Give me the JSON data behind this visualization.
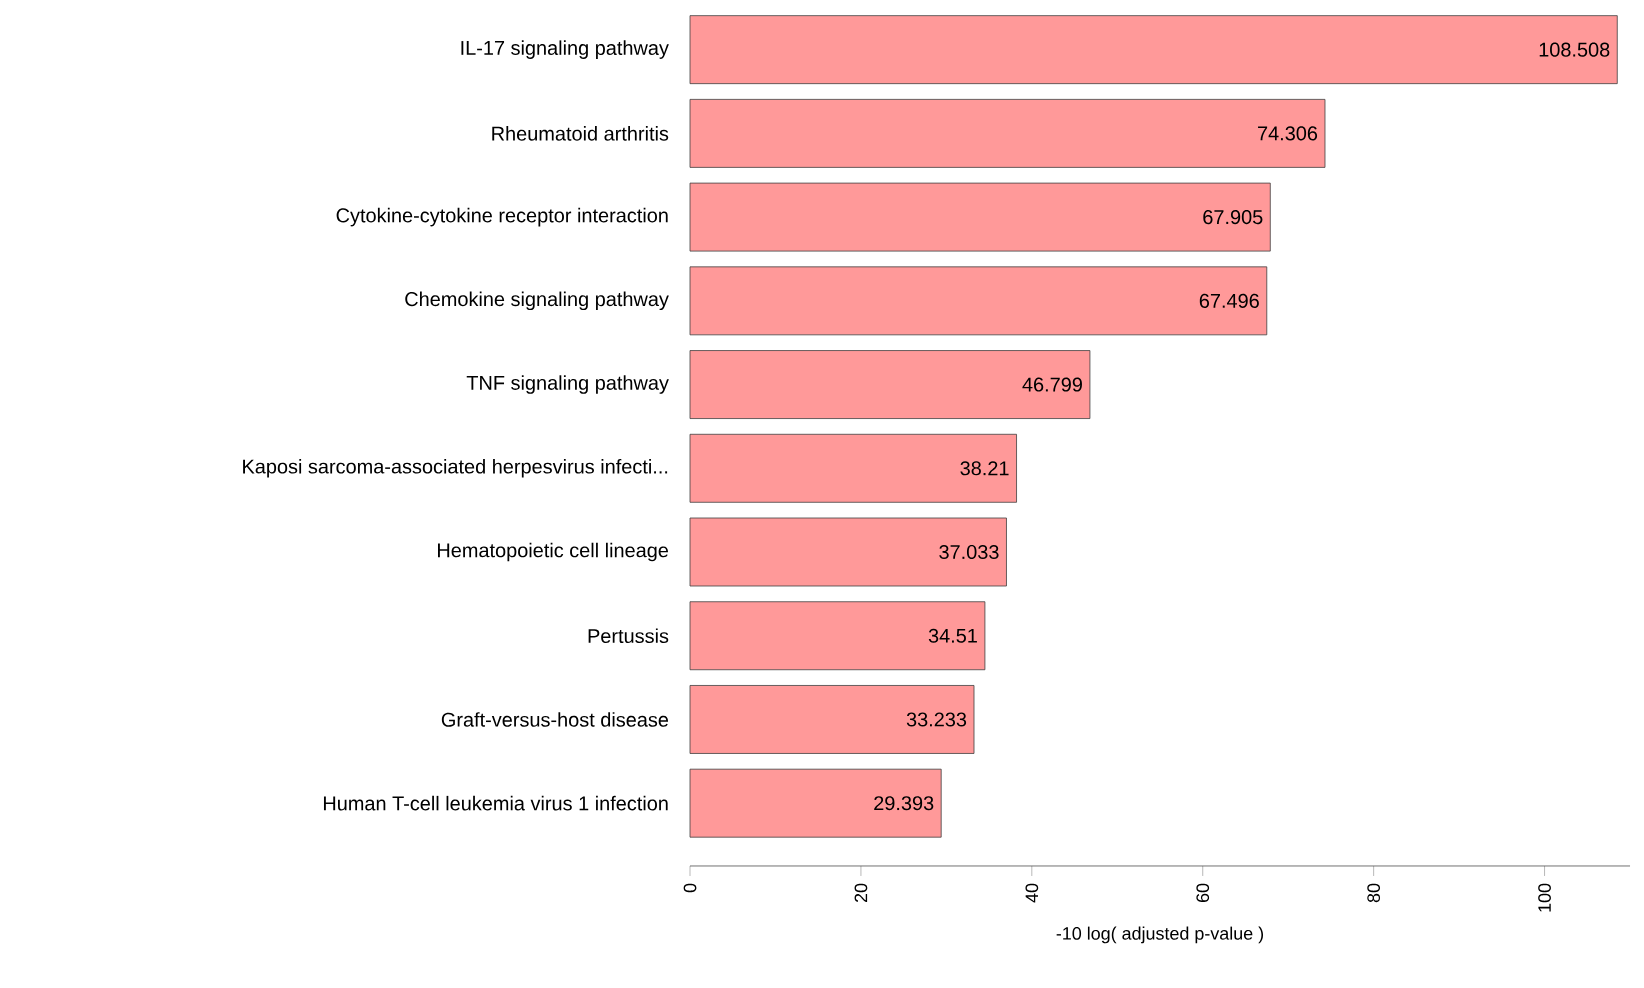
{
  "chart_data": {
    "type": "bar",
    "orientation": "horizontal",
    "xlabel": "-10 log( adjusted p-value )",
    "categories": [
      "IL-17 signaling pathway",
      "Rheumatoid arthritis",
      "Cytokine-cytokine receptor interaction",
      "Chemokine signaling pathway",
      "TNF signaling pathway",
      "Kaposi sarcoma-associated herpesvirus infecti...",
      "Hematopoietic cell lineage",
      "Pertussis",
      "Graft-versus-host disease",
      "Human T-cell leukemia virus 1 infection"
    ],
    "values": [
      108.508,
      74.306,
      67.905,
      67.496,
      46.799,
      38.21,
      37.033,
      34.51,
      33.233,
      29.393
    ],
    "color": "#ff9999",
    "data_labels": true,
    "xlim": [
      0,
      110
    ],
    "xticks": [
      0,
      20,
      40,
      60,
      80,
      100
    ]
  }
}
